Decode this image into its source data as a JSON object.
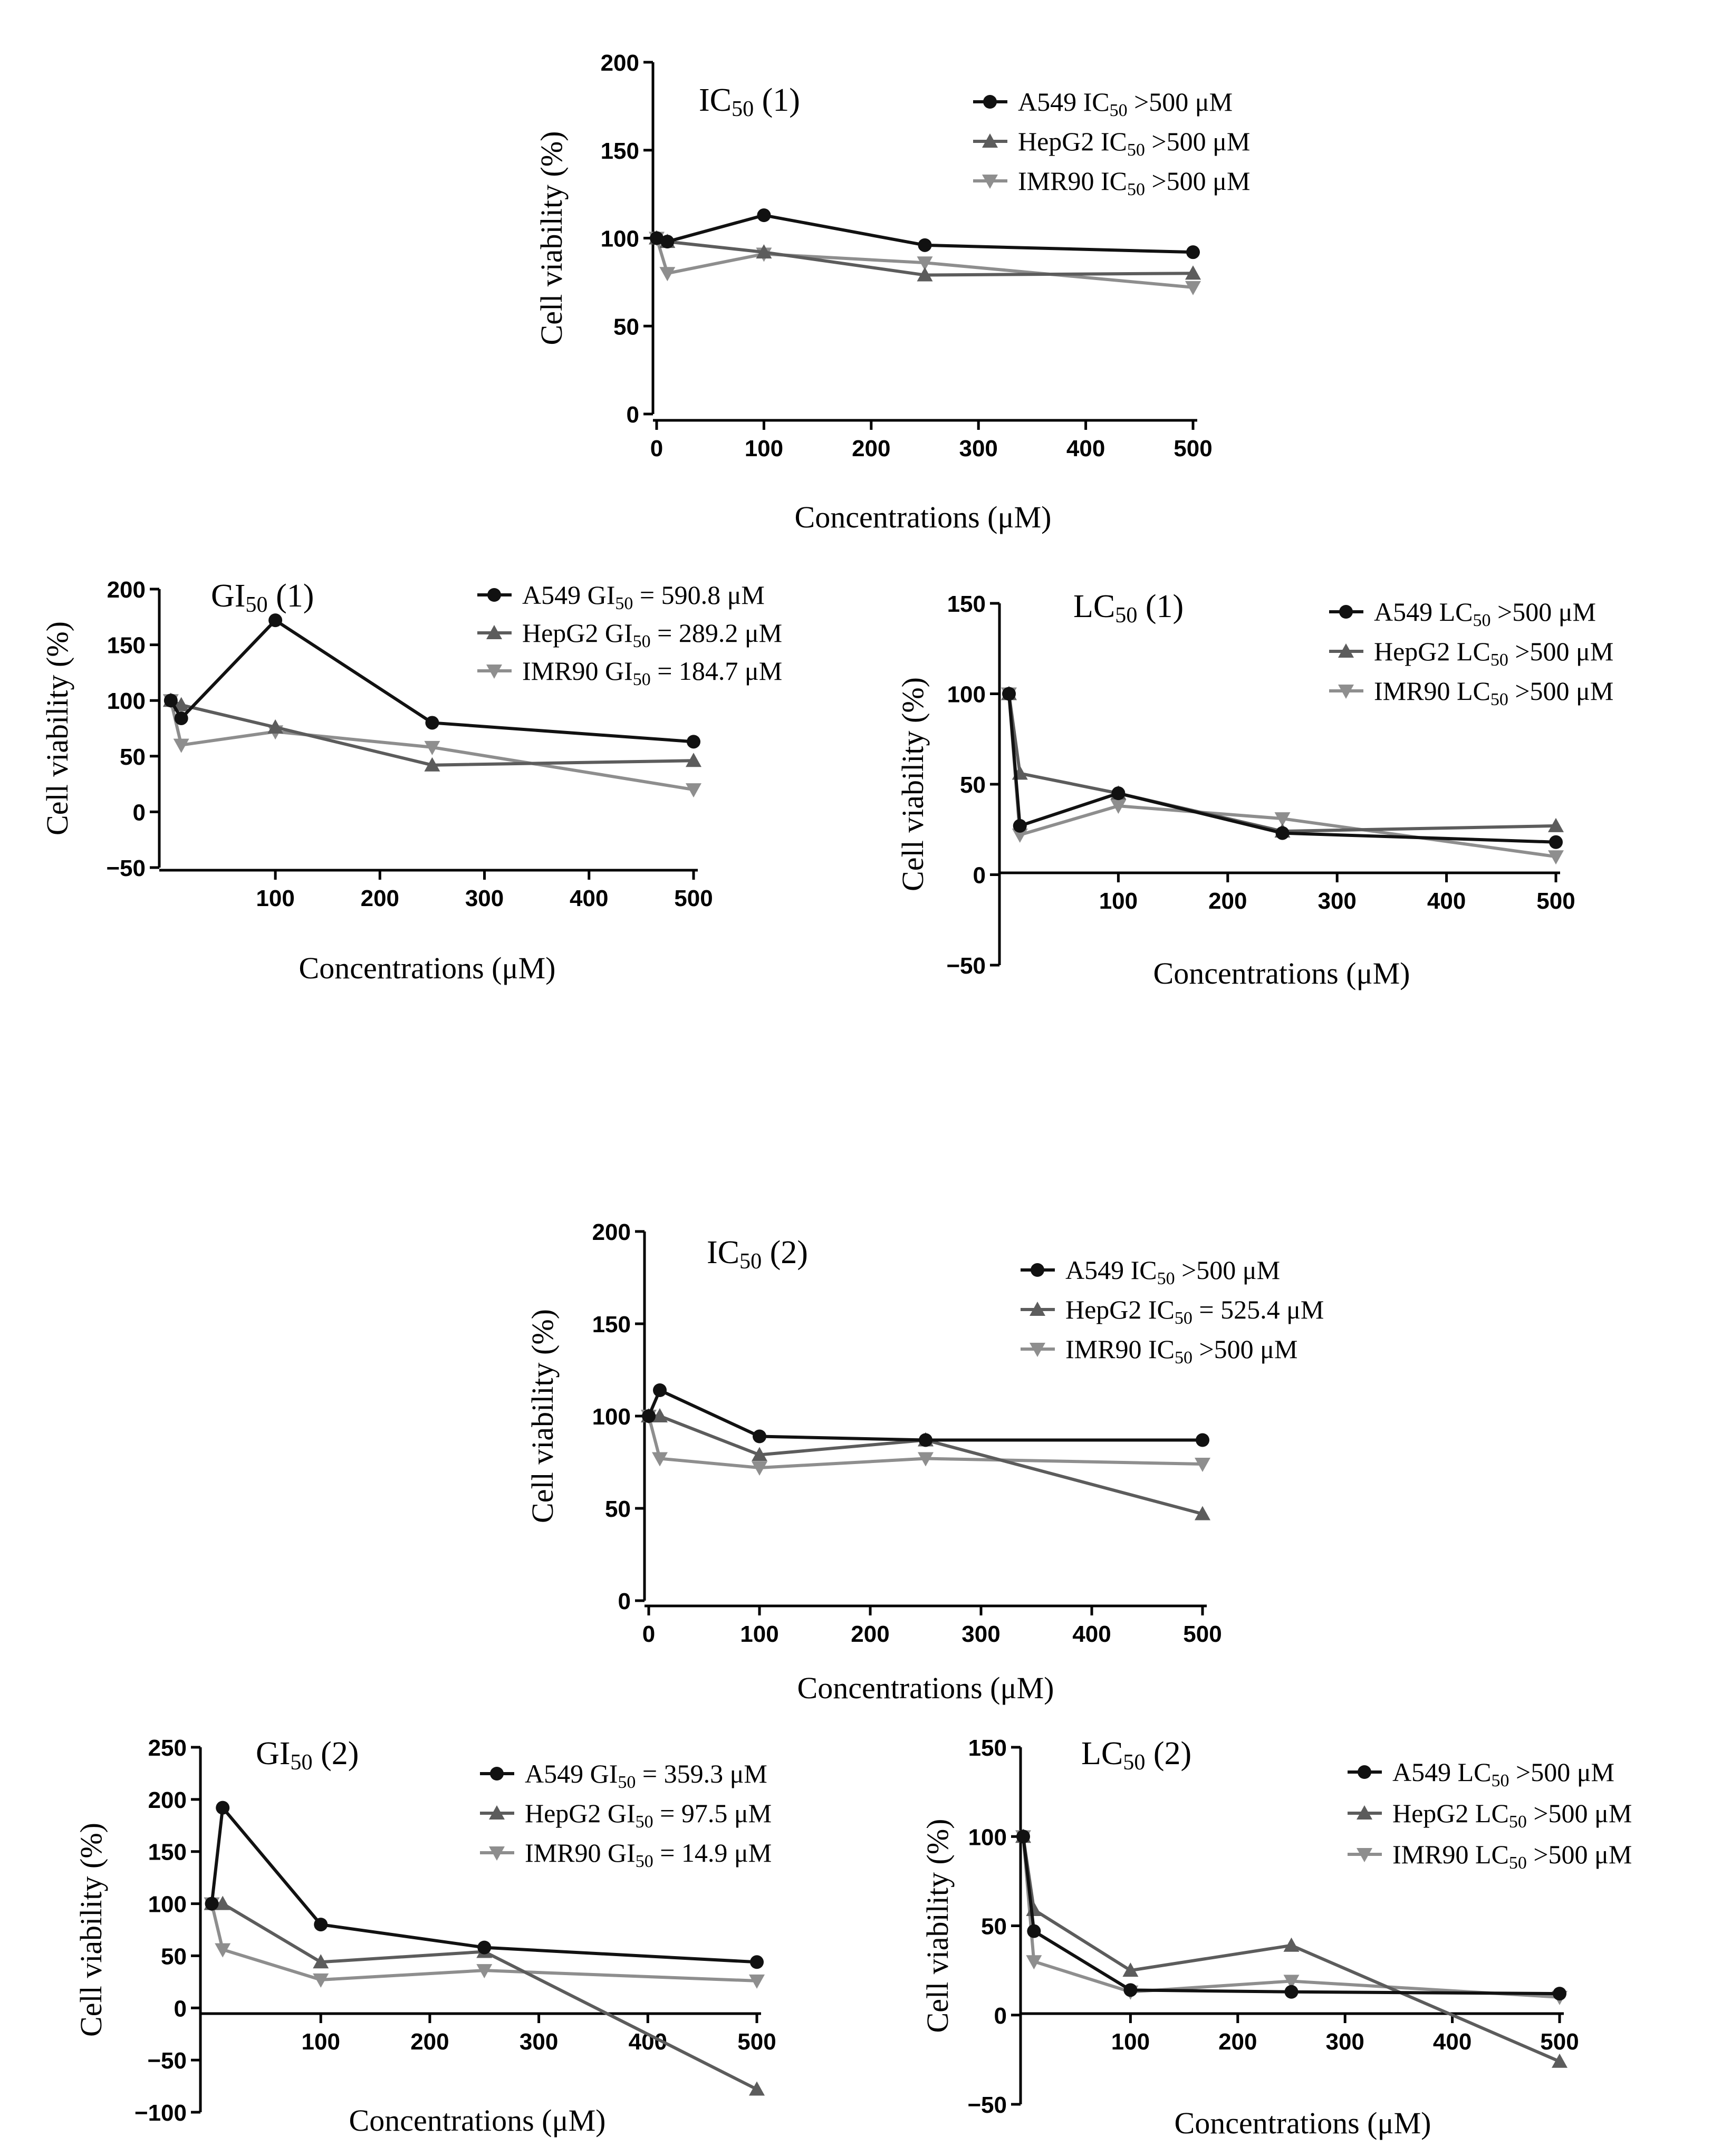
{
  "colors": {
    "A549": "#111111",
    "HepG2": "#5c5c5c",
    "IMR90": "#8e8e8e"
  },
  "chart_data": [
    {
      "type": "line",
      "panel": "IC50 (1)",
      "title": {
        "main": "IC",
        "sub": "50",
        "suffix": " (1)"
      },
      "xlabel": "Concentrations (μM)",
      "ylabel": "Cell viability (%)",
      "xlim": [
        0,
        500
      ],
      "ylim": [
        0,
        200
      ],
      "xticks": [
        0,
        100,
        200,
        300,
        400,
        500
      ],
      "yticks": [
        0,
        50,
        100,
        150,
        200
      ],
      "legend_position": "top-right",
      "series": [
        {
          "name": "A549",
          "marker": "circle",
          "legend": {
            "pre": "A549 IC",
            "sub": "50",
            "post": " >500 μM"
          },
          "x": [
            0,
            10,
            100,
            250,
            500
          ],
          "y": [
            100,
            98,
            113,
            96,
            92
          ]
        },
        {
          "name": "HepG2",
          "marker": "triangle-up",
          "legend": {
            "pre": "HepG2 IC",
            "sub": "50",
            "post": " >500 μM"
          },
          "x": [
            0,
            10,
            100,
            250,
            500
          ],
          "y": [
            100,
            98,
            92,
            79,
            80
          ]
        },
        {
          "name": "IMR90",
          "marker": "triangle-down",
          "legend": {
            "pre": "IMR90 IC",
            "sub": "50",
            "post": " >500 μM"
          },
          "x": [
            0,
            10,
            100,
            250,
            500
          ],
          "y": [
            100,
            80,
            91,
            86,
            72
          ]
        }
      ]
    },
    {
      "type": "line",
      "panel": "GI50 (1)",
      "title": {
        "main": "GI",
        "sub": "50",
        "suffix": " (1)"
      },
      "xlabel": "Concentrations (μM)",
      "ylabel": "Cell viability (%)",
      "xlim": [
        -8,
        500
      ],
      "ylim": [
        -50,
        200
      ],
      "xticks": [
        100,
        200,
        300,
        400,
        500
      ],
      "yticks": [
        -50,
        0,
        50,
        100,
        150,
        200
      ],
      "legend_position": "top-right",
      "series": [
        {
          "name": "A549",
          "marker": "circle",
          "legend": {
            "pre": "A549 GI",
            "sub": "50",
            "post": " = 590.8 μM"
          },
          "x": [
            0,
            10,
            100,
            250,
            500
          ],
          "y": [
            100,
            84,
            172,
            80,
            63
          ]
        },
        {
          "name": "HepG2",
          "marker": "triangle-up",
          "legend": {
            "pre": "HepG2 GI",
            "sub": "50",
            "post": " = 289.2 μM"
          },
          "x": [
            0,
            10,
            100,
            250,
            500
          ],
          "y": [
            100,
            96,
            76,
            42,
            46
          ]
        },
        {
          "name": "IMR90",
          "marker": "triangle-down",
          "legend": {
            "pre": "IMR90 GI",
            "sub": "50",
            "post": " = 184.7 μM"
          },
          "x": [
            0,
            10,
            100,
            250,
            500
          ],
          "y": [
            100,
            60,
            72,
            58,
            20
          ]
        }
      ]
    },
    {
      "type": "line",
      "panel": "LC50 (1)",
      "title": {
        "main": "LC",
        "sub": "50",
        "suffix": " (1)"
      },
      "xlabel": "Concentrations (μM)",
      "ylabel": "Cell viability (%)",
      "xlim": [
        0,
        500
      ],
      "ylim": [
        -50,
        150
      ],
      "xticks": [
        100,
        200,
        300,
        400,
        500
      ],
      "yticks": [
        -50,
        0,
        50,
        100,
        150
      ],
      "legend_position": "top-right",
      "series": [
        {
          "name": "A549",
          "marker": "circle",
          "legend": {
            "pre": "A549 LC",
            "sub": "50",
            "post": " >500 μM"
          },
          "x": [
            0,
            10,
            100,
            250,
            500
          ],
          "y": [
            100,
            27,
            45,
            23,
            18
          ]
        },
        {
          "name": "HepG2",
          "marker": "triangle-up",
          "legend": {
            "pre": "HepG2 LC",
            "sub": "50",
            "post": " >500 μM"
          },
          "x": [
            0,
            10,
            100,
            250,
            500
          ],
          "y": [
            100,
            56,
            45,
            24,
            27
          ]
        },
        {
          "name": "IMR90",
          "marker": "triangle-down",
          "legend": {
            "pre": "IMR90 LC",
            "sub": "50",
            "post": " >500 μM"
          },
          "x": [
            0,
            10,
            100,
            250,
            500
          ],
          "y": [
            100,
            22,
            38,
            31,
            10
          ]
        }
      ]
    },
    {
      "type": "line",
      "panel": "IC50 (2)",
      "title": {
        "main": "IC",
        "sub": "50",
        "suffix": " (2)"
      },
      "xlabel": "Concentrations (μM)",
      "ylabel": "Cell viability (%)",
      "xlim": [
        0,
        500
      ],
      "ylim": [
        0,
        200
      ],
      "xticks": [
        0,
        100,
        200,
        300,
        400,
        500
      ],
      "yticks": [
        0,
        50,
        100,
        150,
        200
      ],
      "legend_position": "top-right",
      "series": [
        {
          "name": "A549",
          "marker": "circle",
          "legend": {
            "pre": "A549 IC",
            "sub": "50",
            "post": " >500 μM"
          },
          "x": [
            0,
            10,
            100,
            250,
            500
          ],
          "y": [
            100,
            114,
            89,
            87,
            87
          ]
        },
        {
          "name": "HepG2",
          "marker": "triangle-up",
          "legend": {
            "pre": "HepG2 IC",
            "sub": "50",
            "post": " = 525.4 μM"
          },
          "x": [
            0,
            10,
            100,
            250,
            500
          ],
          "y": [
            100,
            100,
            79,
            87,
            47
          ]
        },
        {
          "name": "IMR90",
          "marker": "triangle-down",
          "legend": {
            "pre": "IMR90 IC",
            "sub": "50",
            "post": " >500 μM"
          },
          "x": [
            0,
            10,
            100,
            250,
            500
          ],
          "y": [
            100,
            77,
            72,
            77,
            74
          ]
        }
      ]
    },
    {
      "type": "line",
      "panel": "GI50 (2)",
      "title": {
        "main": "GI",
        "sub": "50",
        "suffix": " (2)"
      },
      "xlabel": "Concentrations (μM)",
      "ylabel": "Cell viability (%)",
      "xlim": [
        -8,
        500
      ],
      "ylim": [
        -100,
        250
      ],
      "xticks": [
        100,
        200,
        300,
        400,
        500
      ],
      "yticks": [
        -100,
        -50,
        0,
        50,
        100,
        150,
        200,
        250
      ],
      "legend_position": "top-right",
      "series": [
        {
          "name": "A549",
          "marker": "circle",
          "legend": {
            "pre": "A549 GI",
            "sub": "50",
            "post": " = 359.3 μM"
          },
          "x": [
            0,
            10,
            100,
            250,
            500
          ],
          "y": [
            100,
            192,
            80,
            58,
            44
          ]
        },
        {
          "name": "HepG2",
          "marker": "triangle-up",
          "legend": {
            "pre": "HepG2 GI",
            "sub": "50",
            "post": " = 97.5 μM"
          },
          "x": [
            0,
            10,
            100,
            250,
            500
          ],
          "y": [
            100,
            100,
            44,
            54,
            -78
          ]
        },
        {
          "name": "IMR90",
          "marker": "triangle-down",
          "legend": {
            "pre": "IMR90 GI",
            "sub": "50",
            "post": " = 14.9 μM"
          },
          "x": [
            0,
            10,
            100,
            250,
            500
          ],
          "y": [
            100,
            56,
            27,
            36,
            26
          ]
        }
      ]
    },
    {
      "type": "line",
      "panel": "LC50 (2)",
      "title": {
        "main": "LC",
        "sub": "50",
        "suffix": " (2)"
      },
      "xlabel": "Concentrations (μM)",
      "ylabel": "Cell viability (%)",
      "xlim": [
        0,
        500
      ],
      "ylim": [
        -50,
        150
      ],
      "xticks": [
        100,
        200,
        300,
        400,
        500
      ],
      "yticks": [
        -50,
        0,
        50,
        100,
        150
      ],
      "legend_position": "top-right",
      "series": [
        {
          "name": "A549",
          "marker": "circle",
          "legend": {
            "pre": "A549 LC",
            "sub": "50",
            "post": " >500 μM"
          },
          "x": [
            0,
            10,
            100,
            250,
            500
          ],
          "y": [
            100,
            47,
            14,
            13,
            12
          ]
        },
        {
          "name": "HepG2",
          "marker": "triangle-up",
          "legend": {
            "pre": "HepG2 LC",
            "sub": "50",
            "post": " >500 μM"
          },
          "x": [
            0,
            10,
            100,
            250,
            500
          ],
          "y": [
            100,
            59,
            25,
            39,
            -26
          ]
        },
        {
          "name": "IMR90",
          "marker": "triangle-down",
          "legend": {
            "pre": "IMR90 LC",
            "sub": "50",
            "post": " >500 μM"
          },
          "x": [
            0,
            10,
            100,
            250,
            500
          ],
          "y": [
            100,
            30,
            13,
            19,
            10
          ]
        }
      ]
    }
  ]
}
